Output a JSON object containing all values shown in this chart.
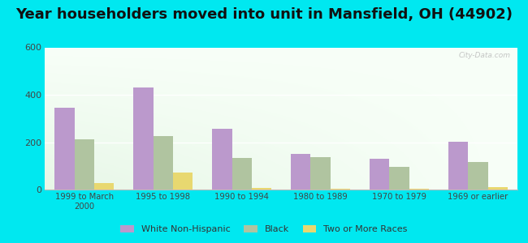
{
  "title": "Year householders moved into unit in Mansfield, OH (44902)",
  "categories": [
    "1999 to March\n2000",
    "1995 to 1998",
    "1990 to 1994",
    "1980 to 1989",
    "1970 to 1979",
    "1969 or earlier"
  ],
  "series": {
    "White Non-Hispanic": [
      347,
      432,
      257,
      152,
      130,
      202
    ],
    "Black": [
      213,
      226,
      133,
      138,
      97,
      117
    ],
    "Two or More Races": [
      28,
      72,
      8,
      3,
      3,
      10
    ]
  },
  "colors": {
    "White Non-Hispanic": "#bb99cc",
    "Black": "#b0c4a0",
    "Two or More Races": "#e8d870"
  },
  "ylim": [
    0,
    600
  ],
  "yticks": [
    0,
    200,
    400,
    600
  ],
  "outer_bg": "#00e8f0",
  "title_fontsize": 13,
  "watermark": "City-Data.com"
}
